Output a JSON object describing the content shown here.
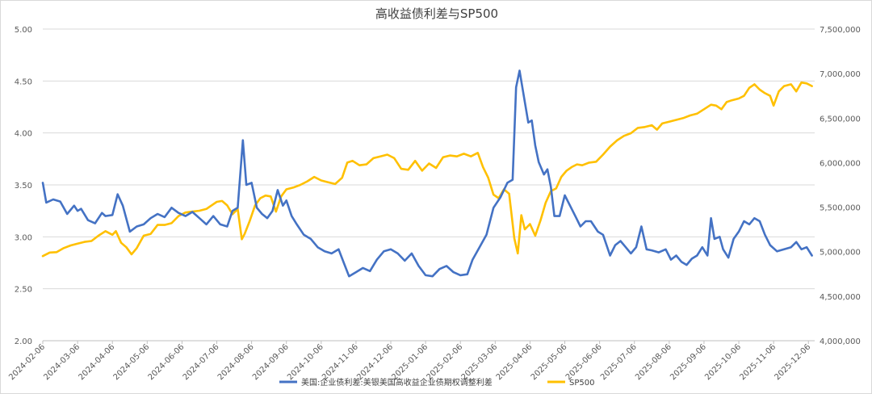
{
  "chart_data": {
    "type": "line",
    "title": "高收益债利差与SP500",
    "xlabel": "",
    "ylabel": "",
    "x_categories": [
      "2024-02-06",
      "2024-03-06",
      "2024-04-06",
      "2024-05-06",
      "2024-06-06",
      "2024-07-06",
      "2024-08-06",
      "2024-09-06",
      "2024-10-06",
      "2024-11-06",
      "2024-12-06",
      "2025-01-06",
      "2025-02-06",
      "2025-03-06",
      "2025-04-06",
      "2025-05-06",
      "2025-06-06",
      "2025-07-06",
      "2025-08-06",
      "2025-09-06",
      "2025-10-06",
      "2025-11-06",
      "2025-12-06"
    ],
    "y_left": {
      "range": [
        2.0,
        5.0
      ],
      "ticks": [
        "2.00",
        "2.50",
        "3.00",
        "3.50",
        "4.00",
        "4.50",
        "5.00"
      ]
    },
    "y_right": {
      "range": [
        4000000,
        7500000
      ],
      "ticks": [
        "4,000,000",
        "4,500,000",
        "5,000,000",
        "5,500,000",
        "6,000,000",
        "6,500,000",
        "7,000,000",
        "7,500,000"
      ]
    },
    "grid": "horizontal",
    "legend_position": "bottom",
    "series": [
      {
        "name": "美国:企业债利差:美银美国高收益企业债期权调整利差",
        "axis": "left",
        "color": "#4472C4",
        "points": [
          [
            0,
            3.52
          ],
          [
            0.1,
            3.33
          ],
          [
            0.3,
            3.36
          ],
          [
            0.5,
            3.34
          ],
          [
            0.7,
            3.22
          ],
          [
            0.9,
            3.3
          ],
          [
            1.0,
            3.25
          ],
          [
            1.1,
            3.27
          ],
          [
            1.3,
            3.16
          ],
          [
            1.5,
            3.13
          ],
          [
            1.7,
            3.23
          ],
          [
            1.8,
            3.2
          ],
          [
            2.0,
            3.21
          ],
          [
            2.15,
            3.41
          ],
          [
            2.3,
            3.3
          ],
          [
            2.5,
            3.05
          ],
          [
            2.7,
            3.1
          ],
          [
            2.9,
            3.12
          ],
          [
            3.1,
            3.18
          ],
          [
            3.3,
            3.22
          ],
          [
            3.5,
            3.19
          ],
          [
            3.7,
            3.28
          ],
          [
            3.9,
            3.23
          ],
          [
            4.1,
            3.2
          ],
          [
            4.3,
            3.24
          ],
          [
            4.5,
            3.18
          ],
          [
            4.7,
            3.12
          ],
          [
            4.9,
            3.2
          ],
          [
            5.1,
            3.12
          ],
          [
            5.3,
            3.1
          ],
          [
            5.45,
            3.25
          ],
          [
            5.6,
            3.28
          ],
          [
            5.75,
            3.93
          ],
          [
            5.85,
            3.5
          ],
          [
            6.0,
            3.52
          ],
          [
            6.15,
            3.28
          ],
          [
            6.3,
            3.22
          ],
          [
            6.45,
            3.18
          ],
          [
            6.6,
            3.25
          ],
          [
            6.75,
            3.45
          ],
          [
            6.9,
            3.3
          ],
          [
            7.0,
            3.35
          ],
          [
            7.15,
            3.2
          ],
          [
            7.3,
            3.12
          ],
          [
            7.5,
            3.02
          ],
          [
            7.7,
            2.98
          ],
          [
            7.9,
            2.9
          ],
          [
            8.1,
            2.86
          ],
          [
            8.3,
            2.84
          ],
          [
            8.5,
            2.88
          ],
          [
            8.65,
            2.75
          ],
          [
            8.8,
            2.62
          ],
          [
            9.0,
            2.66
          ],
          [
            9.2,
            2.7
          ],
          [
            9.4,
            2.67
          ],
          [
            9.6,
            2.78
          ],
          [
            9.8,
            2.86
          ],
          [
            10.0,
            2.88
          ],
          [
            10.2,
            2.84
          ],
          [
            10.4,
            2.77
          ],
          [
            10.6,
            2.84
          ],
          [
            10.8,
            2.72
          ],
          [
            11.0,
            2.63
          ],
          [
            11.2,
            2.62
          ],
          [
            11.4,
            2.69
          ],
          [
            11.6,
            2.72
          ],
          [
            11.8,
            2.66
          ],
          [
            12.0,
            2.63
          ],
          [
            12.2,
            2.64
          ],
          [
            12.35,
            2.78
          ],
          [
            12.55,
            2.9
          ],
          [
            12.75,
            3.02
          ],
          [
            12.95,
            3.28
          ],
          [
            13.15,
            3.38
          ],
          [
            13.35,
            3.52
          ],
          [
            13.5,
            3.55
          ],
          [
            13.6,
            4.44
          ],
          [
            13.7,
            4.6
          ],
          [
            13.8,
            4.4
          ],
          [
            13.95,
            4.1
          ],
          [
            14.05,
            4.12
          ],
          [
            14.15,
            3.88
          ],
          [
            14.25,
            3.72
          ],
          [
            14.4,
            3.6
          ],
          [
            14.5,
            3.65
          ],
          [
            14.6,
            3.48
          ],
          [
            14.7,
            3.2
          ],
          [
            14.85,
            3.2
          ],
          [
            15.0,
            3.4
          ],
          [
            15.15,
            3.3
          ],
          [
            15.3,
            3.2
          ],
          [
            15.45,
            3.1
          ],
          [
            15.6,
            3.15
          ],
          [
            15.75,
            3.15
          ],
          [
            15.95,
            3.05
          ],
          [
            16.1,
            3.02
          ],
          [
            16.3,
            2.82
          ],
          [
            16.45,
            2.92
          ],
          [
            16.6,
            2.96
          ],
          [
            16.75,
            2.9
          ],
          [
            16.9,
            2.84
          ],
          [
            17.05,
            2.9
          ],
          [
            17.2,
            3.1
          ],
          [
            17.35,
            2.88
          ],
          [
            17.5,
            2.87
          ],
          [
            17.7,
            2.85
          ],
          [
            17.9,
            2.88
          ],
          [
            18.05,
            2.78
          ],
          [
            18.2,
            2.82
          ],
          [
            18.35,
            2.76
          ],
          [
            18.5,
            2.73
          ],
          [
            18.65,
            2.79
          ],
          [
            18.8,
            2.82
          ],
          [
            18.95,
            2.9
          ],
          [
            19.1,
            2.82
          ],
          [
            19.2,
            3.18
          ],
          [
            19.3,
            2.98
          ],
          [
            19.45,
            3.0
          ],
          [
            19.55,
            2.88
          ],
          [
            19.7,
            2.8
          ],
          [
            19.85,
            2.98
          ],
          [
            20.0,
            3.05
          ],
          [
            20.15,
            3.15
          ],
          [
            20.3,
            3.12
          ],
          [
            20.45,
            3.18
          ],
          [
            20.6,
            3.15
          ],
          [
            20.75,
            3.02
          ],
          [
            20.9,
            2.92
          ],
          [
            21.1,
            2.86
          ],
          [
            21.3,
            2.88
          ],
          [
            21.5,
            2.9
          ],
          [
            21.65,
            2.95
          ],
          [
            21.8,
            2.88
          ],
          [
            21.95,
            2.9
          ],
          [
            22.1,
            2.82
          ]
        ]
      },
      {
        "name": "SP500",
        "axis": "right",
        "color": "#FFC000",
        "points": [
          [
            0,
            4950000
          ],
          [
            0.2,
            4990000
          ],
          [
            0.4,
            4995000
          ],
          [
            0.6,
            5040000
          ],
          [
            0.8,
            5070000
          ],
          [
            1.0,
            5090000
          ],
          [
            1.2,
            5110000
          ],
          [
            1.4,
            5120000
          ],
          [
            1.6,
            5180000
          ],
          [
            1.8,
            5230000
          ],
          [
            2.0,
            5190000
          ],
          [
            2.1,
            5230000
          ],
          [
            2.25,
            5100000
          ],
          [
            2.4,
            5050000
          ],
          [
            2.55,
            4970000
          ],
          [
            2.7,
            5040000
          ],
          [
            2.9,
            5180000
          ],
          [
            3.1,
            5200000
          ],
          [
            3.3,
            5300000
          ],
          [
            3.5,
            5300000
          ],
          [
            3.7,
            5320000
          ],
          [
            3.9,
            5400000
          ],
          [
            4.1,
            5440000
          ],
          [
            4.3,
            5450000
          ],
          [
            4.5,
            5460000
          ],
          [
            4.7,
            5480000
          ],
          [
            4.85,
            5520000
          ],
          [
            5.0,
            5560000
          ],
          [
            5.15,
            5570000
          ],
          [
            5.3,
            5520000
          ],
          [
            5.45,
            5420000
          ],
          [
            5.6,
            5480000
          ],
          [
            5.72,
            5140000
          ],
          [
            5.8,
            5200000
          ],
          [
            5.95,
            5350000
          ],
          [
            6.1,
            5520000
          ],
          [
            6.25,
            5600000
          ],
          [
            6.4,
            5630000
          ],
          [
            6.55,
            5620000
          ],
          [
            6.7,
            5450000
          ],
          [
            6.85,
            5620000
          ],
          [
            7.0,
            5700000
          ],
          [
            7.2,
            5720000
          ],
          [
            7.4,
            5750000
          ],
          [
            7.6,
            5790000
          ],
          [
            7.8,
            5840000
          ],
          [
            8.0,
            5800000
          ],
          [
            8.2,
            5780000
          ],
          [
            8.4,
            5760000
          ],
          [
            8.6,
            5830000
          ],
          [
            8.75,
            6000000
          ],
          [
            8.9,
            6020000
          ],
          [
            9.1,
            5970000
          ],
          [
            9.3,
            5980000
          ],
          [
            9.5,
            6050000
          ],
          [
            9.7,
            6070000
          ],
          [
            9.9,
            6090000
          ],
          [
            10.1,
            6050000
          ],
          [
            10.3,
            5930000
          ],
          [
            10.5,
            5920000
          ],
          [
            10.7,
            6020000
          ],
          [
            10.9,
            5910000
          ],
          [
            11.1,
            5990000
          ],
          [
            11.3,
            5940000
          ],
          [
            11.5,
            6060000
          ],
          [
            11.7,
            6080000
          ],
          [
            11.9,
            6070000
          ],
          [
            12.1,
            6100000
          ],
          [
            12.3,
            6070000
          ],
          [
            12.5,
            6110000
          ],
          [
            12.65,
            5950000
          ],
          [
            12.8,
            5830000
          ],
          [
            12.95,
            5640000
          ],
          [
            13.1,
            5600000
          ],
          [
            13.25,
            5700000
          ],
          [
            13.4,
            5650000
          ],
          [
            13.55,
            5150000
          ],
          [
            13.65,
            4980000
          ],
          [
            13.75,
            5410000
          ],
          [
            13.85,
            5250000
          ],
          [
            14.0,
            5310000
          ],
          [
            14.15,
            5180000
          ],
          [
            14.3,
            5350000
          ],
          [
            14.45,
            5550000
          ],
          [
            14.6,
            5680000
          ],
          [
            14.75,
            5710000
          ],
          [
            14.9,
            5840000
          ],
          [
            15.05,
            5910000
          ],
          [
            15.2,
            5950000
          ],
          [
            15.35,
            5980000
          ],
          [
            15.5,
            5970000
          ],
          [
            15.7,
            6000000
          ],
          [
            15.9,
            6010000
          ],
          [
            16.1,
            6090000
          ],
          [
            16.3,
            6180000
          ],
          [
            16.5,
            6250000
          ],
          [
            16.7,
            6300000
          ],
          [
            16.9,
            6330000
          ],
          [
            17.1,
            6390000
          ],
          [
            17.3,
            6400000
          ],
          [
            17.5,
            6420000
          ],
          [
            17.65,
            6370000
          ],
          [
            17.8,
            6440000
          ],
          [
            18.0,
            6460000
          ],
          [
            18.2,
            6480000
          ],
          [
            18.4,
            6500000
          ],
          [
            18.6,
            6530000
          ],
          [
            18.8,
            6550000
          ],
          [
            19.0,
            6600000
          ],
          [
            19.2,
            6650000
          ],
          [
            19.35,
            6640000
          ],
          [
            19.5,
            6600000
          ],
          [
            19.65,
            6680000
          ],
          [
            19.8,
            6700000
          ],
          [
            20.0,
            6720000
          ],
          [
            20.15,
            6750000
          ],
          [
            20.3,
            6840000
          ],
          [
            20.45,
            6880000
          ],
          [
            20.6,
            6820000
          ],
          [
            20.75,
            6780000
          ],
          [
            20.9,
            6750000
          ],
          [
            21.0,
            6640000
          ],
          [
            21.15,
            6800000
          ],
          [
            21.3,
            6860000
          ],
          [
            21.5,
            6880000
          ],
          [
            21.65,
            6800000
          ],
          [
            21.8,
            6900000
          ],
          [
            21.95,
            6890000
          ],
          [
            22.1,
            6860000
          ]
        ]
      }
    ]
  }
}
